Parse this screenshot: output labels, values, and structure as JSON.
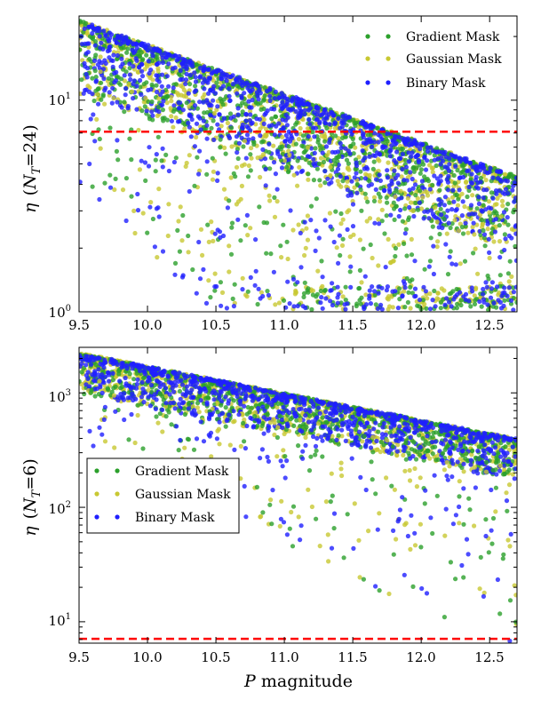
{
  "chart_data": [
    {
      "type": "scatter",
      "panel": "top",
      "ylabel": "η (N_T = 24)",
      "ylabel_parts": {
        "symbol": "η",
        "open": "(",
        "var": "N",
        "sub": "T",
        "eq": "=24",
        "close": ")"
      },
      "xlabel": "",
      "yscale": "log",
      "xlim": [
        9.5,
        12.7
      ],
      "ylim": [
        1,
        25
      ],
      "x_ticks": [
        9.5,
        10.0,
        10.5,
        11.0,
        11.5,
        12.0,
        12.5
      ],
      "x_tick_labels": [
        "9.5",
        "10.0",
        "10.5",
        "11.0",
        "11.5",
        "12.0",
        "12.5"
      ],
      "y_ticks": [
        1,
        10
      ],
      "y_tick_labels": [
        {
          "base": "10",
          "exp": "0"
        },
        {
          "base": "10",
          "exp": "1"
        }
      ],
      "threshold": {
        "y": 7.1,
        "color": "#ff0000",
        "style": "dashed"
      },
      "envelope": {
        "x": [
          9.5,
          12.7
        ],
        "y": [
          23.5,
          4.3
        ]
      },
      "legend": {
        "position": "top-right",
        "frame": false
      },
      "series": [
        {
          "name": "Gradient Mask",
          "color": "#2ca02c"
        },
        {
          "name": "Gaussian Mask",
          "color": "#c8c832"
        },
        {
          "name": "Binary Mask",
          "color": "#1f1fff"
        }
      ],
      "seed": 11
    },
    {
      "type": "scatter",
      "panel": "bottom",
      "ylabel": "η (N_T = 6)",
      "ylabel_parts": {
        "symbol": "η",
        "open": "(",
        "var": "N",
        "sub": "T",
        "eq": "=6",
        "close": ")"
      },
      "xlabel": "P magnitude",
      "xlabel_parts": {
        "var": "P",
        "rest": " magnitude"
      },
      "yscale": "log",
      "xlim": [
        9.5,
        12.7
      ],
      "ylim": [
        6.5,
        2500
      ],
      "x_ticks": [
        9.5,
        10.0,
        10.5,
        11.0,
        11.5,
        12.0,
        12.5
      ],
      "x_tick_labels": [
        "9.5",
        "10.0",
        "10.5",
        "11.0",
        "11.5",
        "12.0",
        "12.5"
      ],
      "y_ticks": [
        10,
        100,
        1000
      ],
      "y_tick_labels": [
        {
          "base": "10",
          "exp": "1"
        },
        {
          "base": "10",
          "exp": "2"
        },
        {
          "base": "10",
          "exp": "3"
        }
      ],
      "threshold": {
        "y": 7.1,
        "color": "#ff0000",
        "style": "dashed"
      },
      "envelope": {
        "x": [
          9.5,
          12.7
        ],
        "y": [
          2200,
          390
        ]
      },
      "legend": {
        "position": "center-left",
        "frame": true
      },
      "series": [
        {
          "name": "Gradient Mask",
          "color": "#2ca02c"
        },
        {
          "name": "Gaussian Mask",
          "color": "#c8c832"
        },
        {
          "name": "Binary Mask",
          "color": "#1f1fff"
        }
      ],
      "seed": 23
    }
  ]
}
